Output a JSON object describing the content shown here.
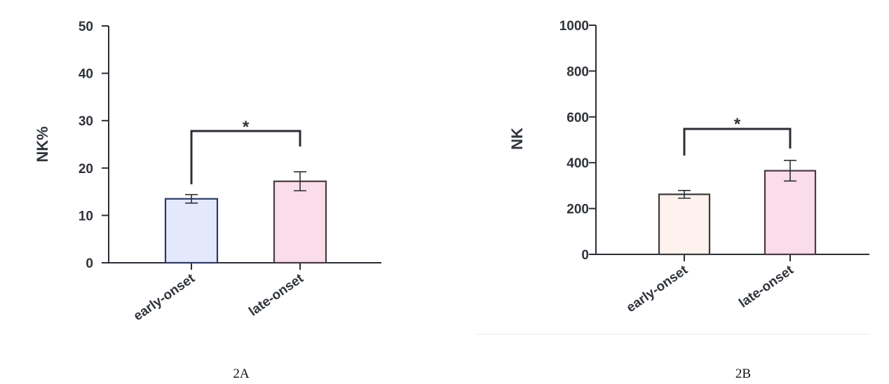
{
  "chart_data": [
    {
      "type": "bar",
      "panel": "2A",
      "categories": [
        "early-onset",
        "late-onset"
      ],
      "values": [
        13.5,
        17.2
      ],
      "error": [
        0.9,
        2.0
      ],
      "ylabel": "NK%",
      "xlabel": "",
      "ylim": [
        0,
        50
      ],
      "yticks": [
        "0",
        "10",
        "20",
        "30",
        "40",
        "50"
      ],
      "significance": "*",
      "colors": {
        "fill": [
          "#e4e8fb",
          "#fbdce9"
        ],
        "stroke": [
          "#2d3a66",
          "#4a3a42"
        ]
      },
      "grid": false
    },
    {
      "type": "bar",
      "panel": "2B",
      "categories": [
        "early-onset",
        "late-onset"
      ],
      "values": [
        262,
        365
      ],
      "error": [
        17,
        45
      ],
      "ylabel": "NK",
      "xlabel": "",
      "ylim": [
        0,
        1000
      ],
      "yticks": [
        "0",
        "200",
        "400",
        "600",
        "800",
        "1000"
      ],
      "significance": "*",
      "colors": {
        "fill": [
          "#fdf2ed",
          "#fbdce9"
        ],
        "stroke": [
          "#3a3a3a",
          "#4a3a42"
        ]
      },
      "grid": false
    }
  ]
}
